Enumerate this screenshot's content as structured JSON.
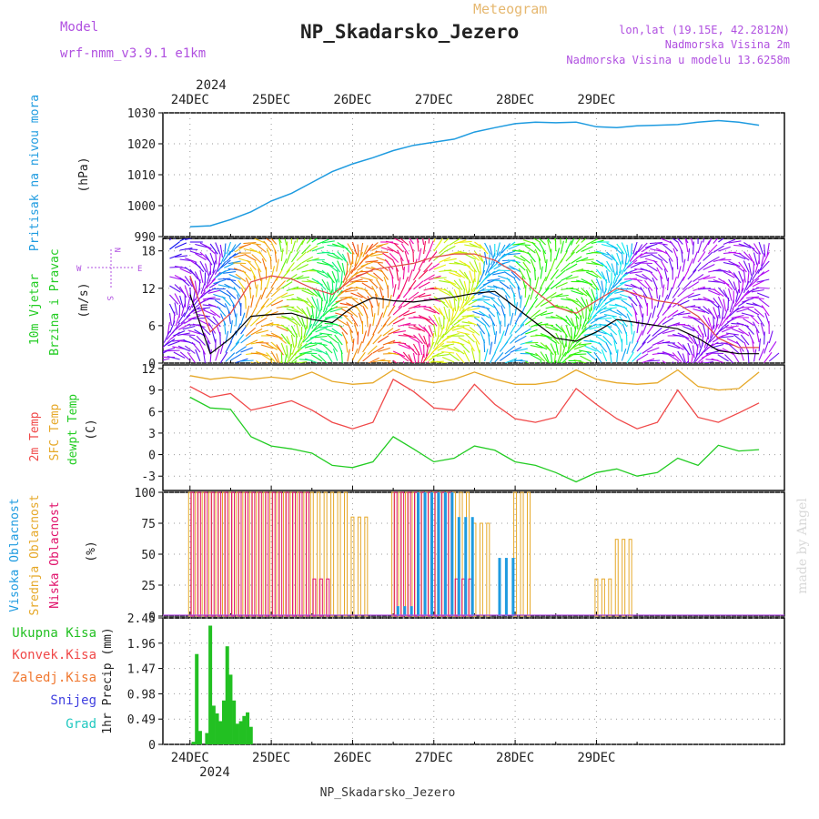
{
  "header": {
    "model_label": "Model",
    "model_name": "wrf-nmm_v3.9.1 e1km",
    "meteogram_label": "Meteogram",
    "station": "NP_Skadarsko_Jezero",
    "lonlat": "lon,lat (19.15E, 42.2812N)",
    "elevation": "Nadmorska Visina 2m",
    "model_elevation": "Nadmorska Visina u modelu 13.6258m"
  },
  "footer": {
    "station": "NP_Skadarsko_Jezero",
    "credit": "made by Angel"
  },
  "colors": {
    "pressure": "#1e9be0",
    "t2m": "#f04848",
    "sfc": "#e6a828",
    "dewpt": "#22cc22",
    "high_cloud": "#1e9be0",
    "mid_cloud": "#e6a828",
    "low_cloud": "#e0106a",
    "precip": "#22c022",
    "wind_speed": "#000000",
    "gust": "#e04848"
  },
  "chart_data": [
    {
      "type": "line",
      "panel": "pressure",
      "ylabel_lines": [
        "Pritisak na nivou mora",
        "(hPa)"
      ],
      "ylim": [
        990,
        1030
      ],
      "yticks": [
        "990",
        "1000",
        "1010",
        "1020",
        "1030"
      ],
      "x_days": [
        "24DEC",
        "25DEC",
        "26DEC",
        "27DEC",
        "28DEC",
        "29DEC"
      ],
      "x_year": "2024",
      "x": [
        0,
        6,
        12,
        18,
        24,
        30,
        36,
        42,
        48,
        54,
        60,
        66,
        72,
        78,
        84,
        90,
        96,
        102,
        108,
        114,
        120,
        126,
        132,
        138,
        144,
        150,
        156,
        162,
        168
      ],
      "series": [
        {
          "values": [
            993.2,
            993.5,
            995.5,
            998,
            1001.5,
            1004,
            1007.5,
            1011,
            1013.5,
            1015.5,
            1017.8,
            1019.5,
            1020.5,
            1021.5,
            1023.8,
            1025.2,
            1026.5,
            1027,
            1026.8,
            1027,
            1025.5,
            1025.2,
            1025.8,
            1026,
            1026.2,
            1027,
            1027.5,
            1027,
            1026
          ]
        }
      ]
    },
    {
      "type": "line",
      "panel": "wind",
      "ylabel_lines": [
        "10m Vjetar",
        "Brzina i Pravac",
        "(m/s)"
      ],
      "compass": [
        "N",
        "W",
        "E",
        "S"
      ],
      "ylim": [
        0,
        20
      ],
      "yticks": [
        "0",
        "6",
        "12",
        "18"
      ],
      "x": [
        0,
        6,
        12,
        18,
        24,
        30,
        36,
        42,
        48,
        54,
        60,
        66,
        72,
        78,
        84,
        90,
        96,
        102,
        108,
        114,
        120,
        126,
        132,
        138,
        144,
        150,
        156,
        162,
        168
      ],
      "series": [
        {
          "values": [
            11,
            1.5,
            4,
            7.5,
            7.8,
            8,
            7,
            6.5,
            9,
            10.5,
            10,
            9.8,
            10.2,
            10.6,
            11.2,
            11.5,
            9,
            6.5,
            4,
            3.5,
            5,
            7,
            6.5,
            6,
            5.5,
            4,
            2,
            1.5,
            1.5
          ]
        },
        {
          "values": [
            14,
            5,
            8,
            13,
            14,
            13.5,
            12,
            11,
            13.5,
            15,
            15.5,
            16,
            17,
            17.5,
            17.5,
            16.5,
            14.5,
            11.5,
            9,
            8,
            10,
            12,
            11,
            10,
            9.5,
            7.5,
            4,
            2.5,
            2.5
          ]
        }
      ]
    },
    {
      "type": "line",
      "panel": "temperature",
      "ylabel_lines": [
        "2m Temp",
        "SFC Temp",
        "dewpt Temp",
        "(C)"
      ],
      "ylim": [
        -5,
        12.5
      ],
      "yticks": [
        "-3",
        "0",
        "3",
        "6",
        "9",
        "12"
      ],
      "x": [
        0,
        6,
        12,
        18,
        24,
        30,
        36,
        42,
        48,
        54,
        60,
        66,
        72,
        78,
        84,
        90,
        96,
        102,
        108,
        114,
        120,
        126,
        132,
        138,
        144,
        150,
        156,
        162,
        168
      ],
      "series": [
        {
          "name": "2m Temp",
          "values": [
            9.5,
            8,
            8.5,
            6.2,
            6.8,
            7.5,
            6.2,
            4.5,
            3.6,
            4.5,
            10.5,
            8.8,
            6.5,
            6.2,
            9.8,
            7,
            5,
            4.5,
            5.2,
            9.2,
            7,
            5,
            3.6,
            4.5,
            9,
            5.2,
            4.5,
            5.8,
            7.2
          ]
        },
        {
          "name": "SFC Temp",
          "values": [
            11,
            10.5,
            10.8,
            10.5,
            10.8,
            10.5,
            11.5,
            10.2,
            9.8,
            10,
            11.8,
            10.5,
            10,
            10.5,
            11.5,
            10.5,
            9.8,
            9.8,
            10.2,
            11.8,
            10.5,
            10,
            9.8,
            10,
            11.8,
            9.5,
            9,
            9.2,
            11.5
          ]
        },
        {
          "name": "dewpt Temp",
          "values": [
            8,
            6.5,
            6.3,
            2.5,
            1.2,
            0.8,
            0.2,
            -1.5,
            -1.8,
            -1,
            2.5,
            0.8,
            -1,
            -0.5,
            1.2,
            0.6,
            -1,
            -1.5,
            -2.5,
            -3.8,
            -2.5,
            -2,
            -3,
            -2.5,
            -0.5,
            -1.5,
            1.3,
            0.5,
            0.7
          ]
        }
      ]
    },
    {
      "type": "bar",
      "panel": "clouds",
      "ylabel_lines": [
        "Visoka Oblacnost",
        "Srednja Oblacnost",
        "Niska Oblacnost",
        "(%)"
      ],
      "ylim": [
        0,
        100
      ],
      "yticks": [
        "0",
        "25",
        "50",
        "75",
        "100"
      ],
      "x": [
        0,
        6,
        12,
        18,
        24,
        30,
        36,
        42,
        48,
        54,
        60,
        66,
        72,
        78,
        84,
        90,
        96,
        102,
        108,
        114,
        120,
        126,
        132,
        138,
        144,
        150,
        156,
        162,
        168
      ],
      "series": [
        {
          "name": "Srednja Oblacnost",
          "values": [
            100,
            100,
            100,
            100,
            100,
            100,
            100,
            100,
            80,
            0,
            100,
            100,
            100,
            100,
            75,
            0,
            100,
            0,
            0,
            0,
            30,
            62,
            0,
            0,
            0,
            0,
            0,
            0,
            0
          ]
        },
        {
          "name": "Niska Oblacnost",
          "values": [
            100,
            100,
            100,
            100,
            100,
            100,
            30,
            0,
            0,
            0,
            100,
            100,
            100,
            30,
            0,
            0,
            0,
            0,
            0,
            0,
            0,
            0,
            0,
            0,
            0,
            0,
            0,
            0,
            0
          ]
        },
        {
          "name": "Visoka Oblacnost",
          "values": [
            0,
            0,
            0,
            0,
            0,
            0,
            0,
            0,
            0,
            0,
            8,
            100,
            100,
            80,
            0,
            47,
            0,
            0,
            0,
            0,
            0,
            0,
            0,
            0,
            0,
            0,
            0,
            0,
            0
          ]
        }
      ]
    },
    {
      "type": "bar",
      "panel": "precip",
      "ylabel_lines": [
        "1hr Precip (mm)"
      ],
      "legend": [
        "Ukupna Kisa",
        "Konvek.Kisa",
        "Zaledj.Kisa",
        "Snijeg",
        "Grad"
      ],
      "ylim": [
        0,
        2.45
      ],
      "yticks": [
        "0",
        "0.49",
        "0.98",
        "1.47",
        "1.96",
        "2.45"
      ],
      "x": [
        1,
        2,
        3,
        5,
        6,
        7,
        8,
        9,
        10,
        11,
        12,
        13,
        14,
        15,
        16,
        17,
        18
      ],
      "series": [
        {
          "name": "Ukupna Kisa",
          "values": [
            0.05,
            1.75,
            0.26,
            0.22,
            2.3,
            0.75,
            0.6,
            0.45,
            0.85,
            1.9,
            1.35,
            0.85,
            0.4,
            0.45,
            0.55,
            0.62,
            0.34
          ]
        }
      ]
    }
  ]
}
